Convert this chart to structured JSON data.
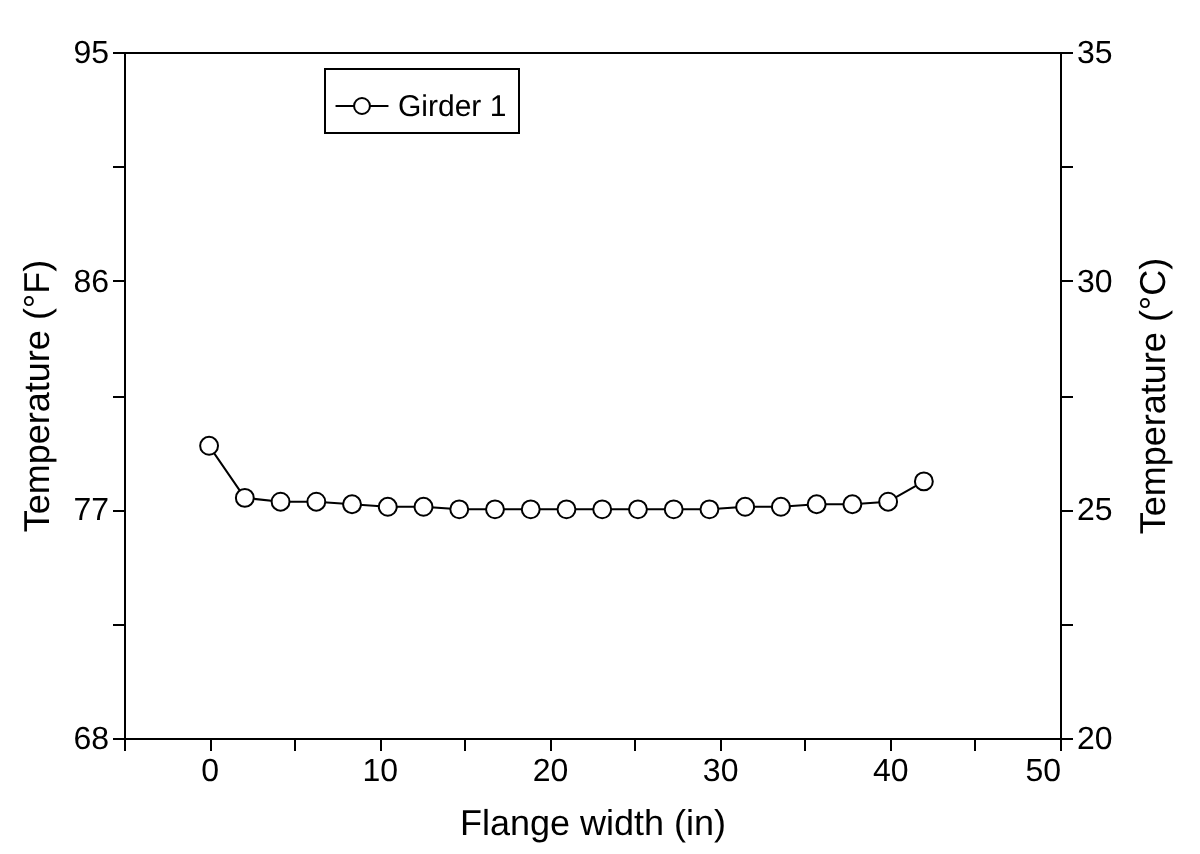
{
  "chart_data": {
    "type": "line",
    "x": [
      0,
      2.1,
      4.2,
      6.3,
      8.4,
      10.5,
      12.6,
      14.7,
      16.8,
      18.9,
      21,
      23.1,
      25.2,
      27.3,
      29.4,
      31.5,
      33.6,
      35.7,
      37.8,
      39.9,
      42
    ],
    "series": [
      {
        "name": "Girder 1",
        "color": "#000000",
        "values": [
          79.5,
          77.45,
          77.3,
          77.3,
          77.2,
          77.1,
          77.1,
          77.0,
          77.0,
          77.0,
          77.0,
          77.0,
          77.0,
          77.0,
          77.0,
          77.1,
          77.1,
          77.2,
          77.2,
          77.3,
          78.1
        ]
      }
    ],
    "xlabel": "Flange width (in)",
    "ylabel": "Temperature (°F)",
    "y2label": "Temperature (°C)",
    "xlim": [
      -5,
      50
    ],
    "xticks": [
      {
        "value": -5,
        "label": null
      },
      0,
      {
        "value": 5,
        "label": null
      },
      10,
      {
        "value": 15,
        "label": null
      },
      20,
      {
        "value": 25,
        "label": null
      },
      30,
      {
        "value": 35,
        "label": null
      },
      40,
      {
        "value": 45,
        "label": null
      },
      50
    ],
    "ylim": [
      68,
      95
    ],
    "yticks": [
      68,
      {
        "value": 72.5,
        "label": null
      },
      77,
      {
        "value": 81.5,
        "label": null
      },
      86,
      {
        "value": 90.5,
        "label": null
      },
      95
    ],
    "y2lim": [
      20,
      35
    ],
    "y2ticks": [
      20,
      {
        "value": 22.5,
        "label": null
      },
      25,
      {
        "value": 27.5,
        "label": null
      },
      30,
      {
        "value": 32.5,
        "label": null
      },
      35
    ],
    "legend": "top left",
    "marker": "circle",
    "line_style": "solid"
  }
}
